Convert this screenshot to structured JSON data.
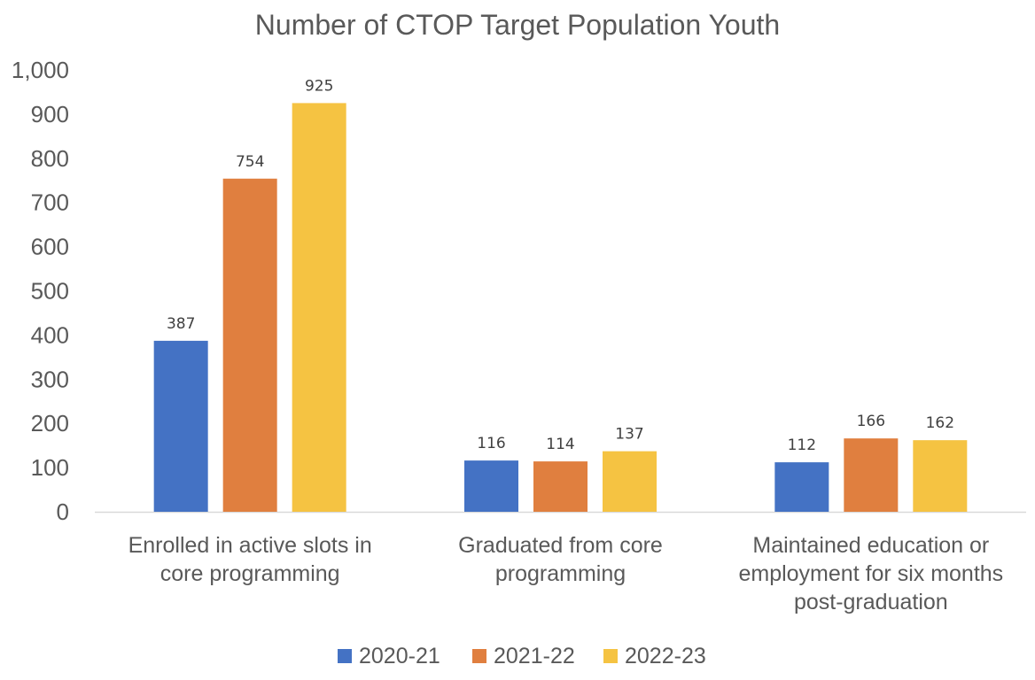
{
  "chart_data": {
    "type": "bar",
    "title": "Number of CTOP Target Population Youth",
    "categories": [
      [
        "Enrolled in active slots in",
        "core programming"
      ],
      [
        "Graduated from core",
        "programming"
      ],
      [
        "Maintained education or",
        "employment for six months",
        "post-graduation"
      ]
    ],
    "series": [
      {
        "name": "2020-21",
        "color": "#4472C4",
        "values": [
          387,
          116,
          112
        ]
      },
      {
        "name": "2021-22",
        "color": "#E07F3F",
        "values": [
          754,
          114,
          166
        ]
      },
      {
        "name": "2022-23",
        "color": "#F5C342",
        "values": [
          925,
          137,
          162
        ]
      }
    ],
    "ylim": [
      0,
      1000
    ],
    "yticks": [
      {
        "value": 0,
        "label": "0"
      },
      {
        "value": 100,
        "label": "100"
      },
      {
        "value": 200,
        "label": "200"
      },
      {
        "value": 300,
        "label": "300"
      },
      {
        "value": 400,
        "label": "400"
      },
      {
        "value": 500,
        "label": "500"
      },
      {
        "value": 600,
        "label": "600"
      },
      {
        "value": 700,
        "label": "700"
      },
      {
        "value": 800,
        "label": "800"
      },
      {
        "value": 900,
        "label": "900"
      },
      {
        "value": 1000,
        "label": "1,000"
      }
    ],
    "xlabel": "",
    "ylabel": "",
    "grid": false,
    "legend_position": "bottom"
  }
}
